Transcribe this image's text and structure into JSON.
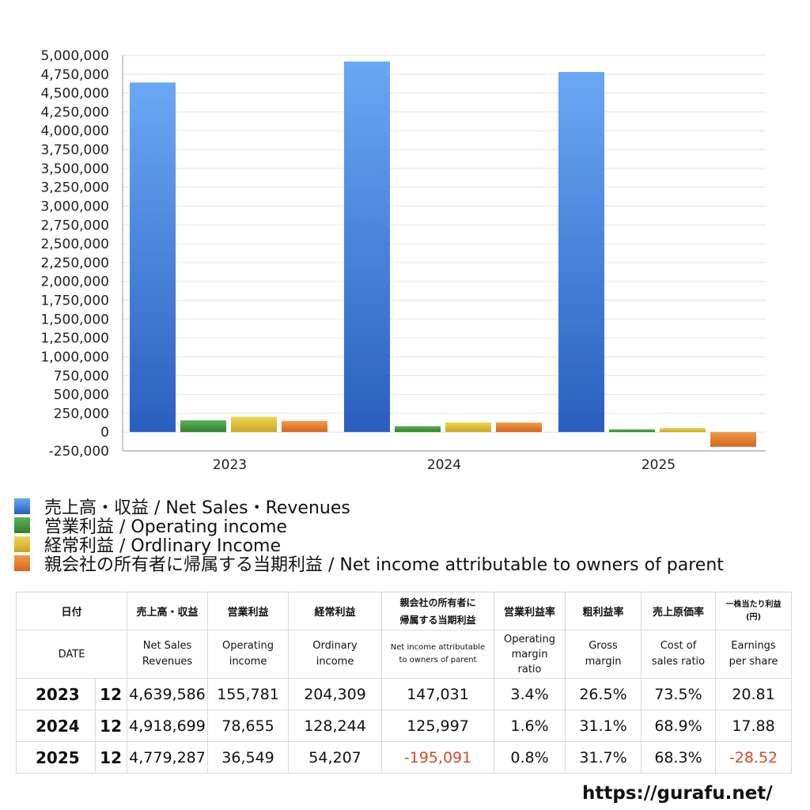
{
  "chart_data": {
    "type": "bar",
    "categories": [
      "2023",
      "2024",
      "2025"
    ],
    "series": [
      {
        "name": "売上高・収益 / Net Sales・Revenues",
        "values": [
          4639586,
          4918699,
          4779287
        ],
        "color": "#3d7ee0"
      },
      {
        "name": "営業利益 / Operating income",
        "values": [
          155781,
          78655,
          36549
        ],
        "color": "#3e9a3a"
      },
      {
        "name": "経常利益 / Ordlinary Income",
        "values": [
          204309,
          128244,
          54207
        ],
        "color": "#e2c232"
      },
      {
        "name": "親会社の所有者に帰属する当期利益 / Net income attributable to owners of parent",
        "values": [
          147031,
          125997,
          -195091
        ],
        "color": "#e57a2a"
      }
    ],
    "ylim": [
      -250000,
      5000000
    ],
    "yticks": [
      "5,000,000",
      "4,750,000",
      "4,500,000",
      "4,250,000",
      "4,000,000",
      "3,750,000",
      "3,500,000",
      "3,250,000",
      "3,000,000",
      "2,750,000",
      "2,500,000",
      "2,250,000",
      "2,000,000",
      "1,750,000",
      "1,500,000",
      "1,250,000",
      "1,000,000",
      "750,000",
      "500,000",
      "250,000",
      "0",
      "-250,000"
    ],
    "ytick_values": [
      5000000,
      4750000,
      4500000,
      4250000,
      4000000,
      3750000,
      3500000,
      3250000,
      3000000,
      2750000,
      2500000,
      2250000,
      2000000,
      1750000,
      1500000,
      1250000,
      1000000,
      750000,
      500000,
      250000,
      0,
      -250000
    ],
    "grid": true,
    "legend_position": "bottom-left"
  },
  "table": {
    "headers_ja": [
      "日付",
      "売上高・収益",
      "営業利益",
      "経常利益",
      "親会社の所有者に\n帰属する当期利益",
      "営業利益率",
      "粗利益率",
      "売上原価率",
      "一株当たり利益\n(円)"
    ],
    "headers_en": [
      "DATE",
      "Net Sales\nRevenues",
      "Operating\nincome",
      "Ordinary\nincome",
      "Net income attributable\nto owners of parent",
      "Operating\nmargin\nratio",
      "Gross\nmargin",
      "Cost of\nsales ratio",
      "Earnings\nper share"
    ],
    "rows": [
      {
        "year": "2023",
        "month": "12",
        "sales": "4,639,586",
        "op": "155,781",
        "ord": "204,309",
        "net": "147,031",
        "opm": "3.4%",
        "gm": "26.5%",
        "cost": "73.5%",
        "eps": "20.81",
        "net_neg": false,
        "eps_neg": false
      },
      {
        "year": "2024",
        "month": "12",
        "sales": "4,918,699",
        "op": "78,655",
        "ord": "128,244",
        "net": "125,997",
        "opm": "1.6%",
        "gm": "31.1%",
        "cost": "68.9%",
        "eps": "17.88",
        "net_neg": false,
        "eps_neg": false
      },
      {
        "year": "2025",
        "month": "12",
        "sales": "4,779,287",
        "op": "36,549",
        "ord": "54,207",
        "net": "-195,091",
        "opm": "0.8%",
        "gm": "31.7%",
        "cost": "68.3%",
        "eps": "-28.52",
        "net_neg": true,
        "eps_neg": true
      }
    ]
  },
  "site": "https://gurafu.net/"
}
